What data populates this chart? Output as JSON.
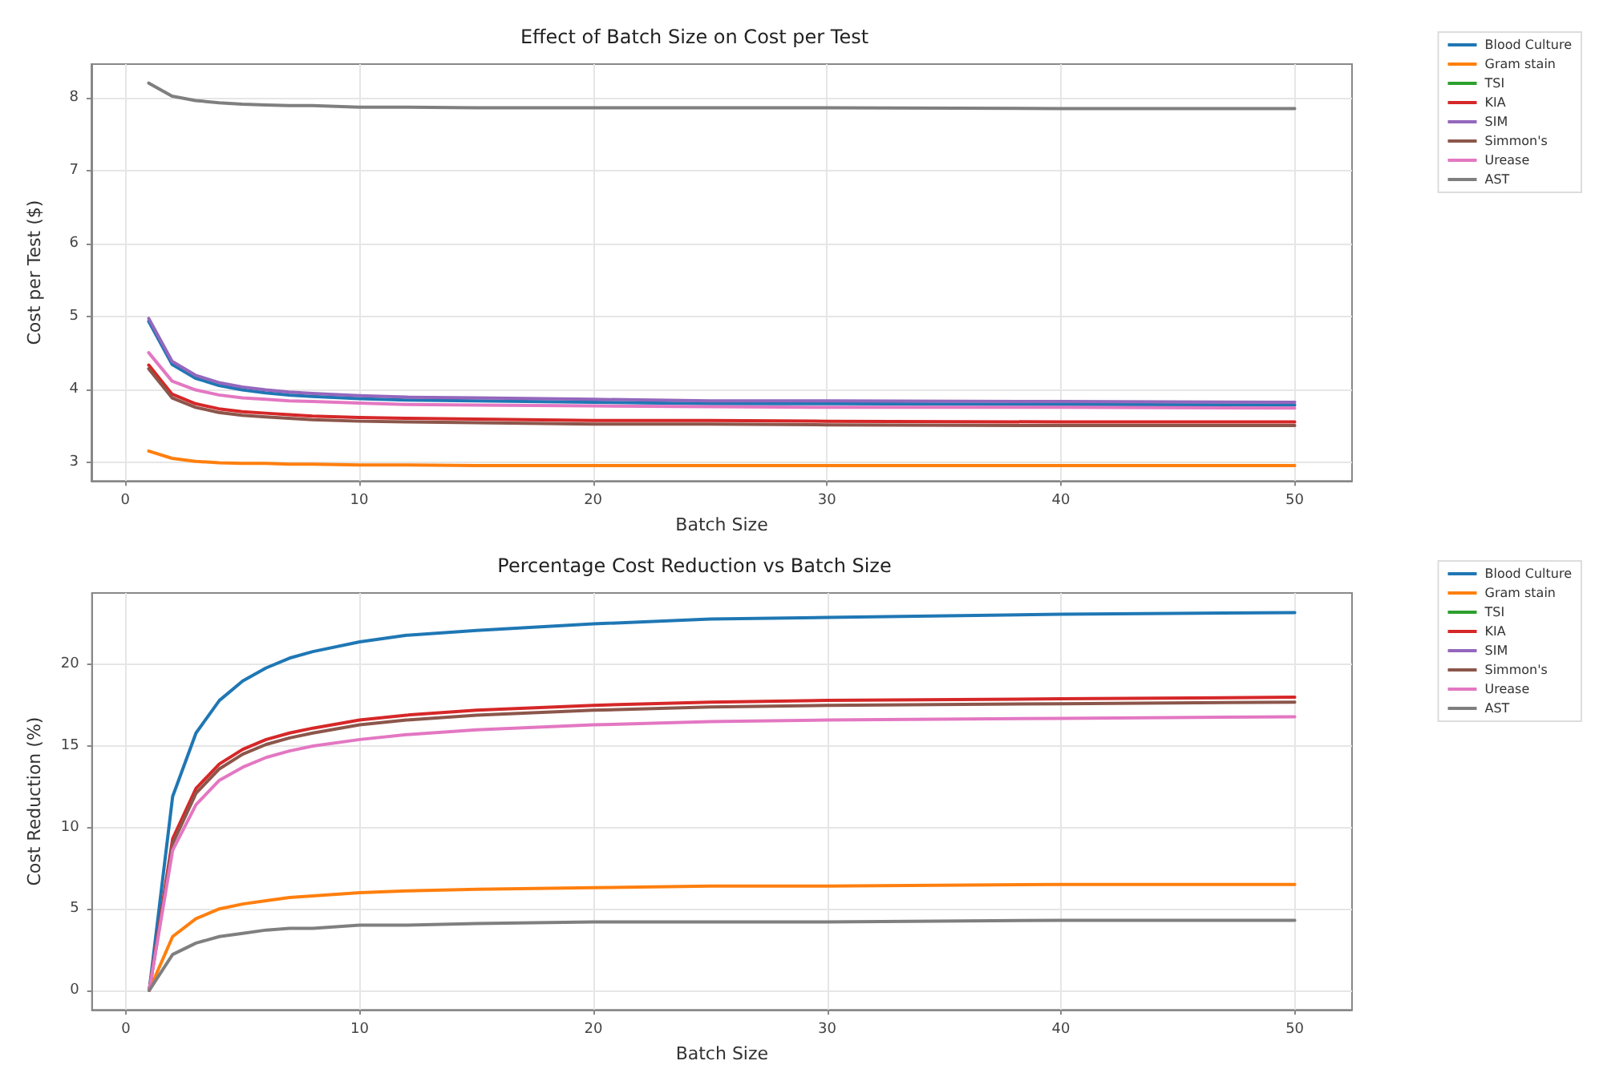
{
  "chart_data": [
    {
      "type": "line",
      "title": "Effect of Batch Size on Cost per Test",
      "xlabel": "Batch Size",
      "ylabel": "Cost per Test ($)",
      "x": [
        1,
        2,
        3,
        4,
        5,
        6,
        7,
        8,
        10,
        12,
        15,
        20,
        25,
        30,
        40,
        50
      ],
      "xlim": [
        -1.45,
        52.45
      ],
      "xticks": [
        0,
        10,
        20,
        30,
        40,
        50
      ],
      "ylim": [
        2.74,
        8.46
      ],
      "yticks": [
        3,
        4,
        5,
        6,
        7,
        8
      ],
      "grid": true,
      "legend": "right",
      "marker": "none",
      "line_style": "solid",
      "series": [
        {
          "name": "Blood Culture",
          "color": "#1f77b4",
          "values": [
            4.93,
            4.34,
            4.15,
            4.05,
            3.99,
            3.95,
            3.92,
            3.9,
            3.87,
            3.85,
            3.84,
            3.82,
            3.8,
            3.8,
            3.79,
            3.78
          ]
        },
        {
          "name": "Gram stain",
          "color": "#ff7f0e",
          "values": [
            3.15,
            3.05,
            3.01,
            2.99,
            2.98,
            2.98,
            2.97,
            2.97,
            2.96,
            2.96,
            2.95,
            2.95,
            2.95,
            2.95,
            2.95,
            2.95
          ]
        },
        {
          "name": "TSI",
          "color": "#2ca02c",
          "values": [
            null,
            null,
            null,
            null,
            null,
            null,
            null,
            null,
            null,
            null,
            null,
            null,
            null,
            null,
            null,
            null
          ]
        },
        {
          "name": "KIA",
          "color": "#d62728",
          "values": [
            4.33,
            3.93,
            3.8,
            3.73,
            3.69,
            3.67,
            3.65,
            3.63,
            3.61,
            3.6,
            3.59,
            3.57,
            3.57,
            3.56,
            3.55,
            3.55
          ]
        },
        {
          "name": "SIM",
          "color": "#9467bd",
          "values": [
            4.97,
            4.38,
            4.19,
            4.09,
            4.03,
            3.99,
            3.96,
            3.94,
            3.91,
            3.89,
            3.88,
            3.86,
            3.84,
            3.84,
            3.83,
            3.82
          ]
        },
        {
          "name": "Simmon's",
          "color": "#8c564b",
          "values": [
            4.28,
            3.88,
            3.75,
            3.68,
            3.64,
            3.62,
            3.6,
            3.58,
            3.56,
            3.55,
            3.54,
            3.52,
            3.52,
            3.51,
            3.5,
            3.5
          ]
        },
        {
          "name": "Urease",
          "color": "#e377c2",
          "values": [
            4.5,
            4.11,
            3.99,
            3.92,
            3.88,
            3.86,
            3.84,
            3.83,
            3.81,
            3.79,
            3.78,
            3.77,
            3.76,
            3.75,
            3.75,
            3.74
          ]
        },
        {
          "name": "AST",
          "color": "#7f7f7f",
          "values": [
            8.2,
            8.02,
            7.96,
            7.93,
            7.91,
            7.9,
            7.89,
            7.89,
            7.87,
            7.87,
            7.86,
            7.86,
            7.86,
            7.86,
            7.85,
            7.85
          ]
        }
      ]
    },
    {
      "type": "line",
      "title": "Percentage Cost Reduction vs Batch Size",
      "xlabel": "Batch Size",
      "ylabel": "Cost Reduction (%)",
      "x": [
        1,
        2,
        3,
        4,
        5,
        6,
        7,
        8,
        10,
        12,
        15,
        20,
        25,
        30,
        40,
        50
      ],
      "xlim": [
        -1.45,
        52.45
      ],
      "xticks": [
        0,
        10,
        20,
        30,
        40,
        50
      ],
      "ylim": [
        -1.2,
        24.4
      ],
      "yticks": [
        0,
        5,
        10,
        15,
        20
      ],
      "grid": true,
      "legend": "right",
      "marker": "none",
      "line_style": "solid",
      "series": [
        {
          "name": "Blood Culture",
          "color": "#1f77b4",
          "values": [
            0,
            11.9,
            15.8,
            17.8,
            19.0,
            19.8,
            20.4,
            20.8,
            21.4,
            21.8,
            22.1,
            22.5,
            22.8,
            22.9,
            23.1,
            23.2
          ]
        },
        {
          "name": "Gram stain",
          "color": "#ff7f0e",
          "values": [
            0,
            3.3,
            4.4,
            5.0,
            5.3,
            5.5,
            5.7,
            5.8,
            6.0,
            6.1,
            6.2,
            6.3,
            6.4,
            6.4,
            6.5,
            6.5
          ]
        },
        {
          "name": "TSI",
          "color": "#2ca02c",
          "values": [
            null,
            null,
            null,
            null,
            null,
            null,
            null,
            null,
            null,
            null,
            null,
            null,
            null,
            null,
            null,
            null
          ]
        },
        {
          "name": "KIA",
          "color": "#d62728",
          "values": [
            0,
            9.3,
            12.4,
            13.9,
            14.8,
            15.4,
            15.8,
            16.1,
            16.6,
            16.9,
            17.2,
            17.5,
            17.7,
            17.8,
            17.9,
            18.0
          ]
        },
        {
          "name": "SIM",
          "color": "#9467bd",
          "values": [
            null,
            null,
            null,
            null,
            null,
            null,
            null,
            null,
            null,
            null,
            null,
            null,
            null,
            null,
            null,
            null
          ]
        },
        {
          "name": "Simmon's",
          "color": "#8c564b",
          "values": [
            0,
            9.0,
            12.1,
            13.6,
            14.5,
            15.1,
            15.5,
            15.8,
            16.3,
            16.6,
            16.9,
            17.2,
            17.4,
            17.5,
            17.6,
            17.7
          ]
        },
        {
          "name": "Urease",
          "color": "#e377c2",
          "values": [
            0,
            8.6,
            11.4,
            12.9,
            13.7,
            14.3,
            14.7,
            15.0,
            15.4,
            15.7,
            16.0,
            16.3,
            16.5,
            16.6,
            16.7,
            16.8
          ]
        },
        {
          "name": "AST",
          "color": "#7f7f7f",
          "values": [
            0,
            2.2,
            2.9,
            3.3,
            3.5,
            3.7,
            3.8,
            3.8,
            4.0,
            4.0,
            4.1,
            4.2,
            4.2,
            4.2,
            4.3,
            4.3
          ]
        }
      ]
    }
  ]
}
